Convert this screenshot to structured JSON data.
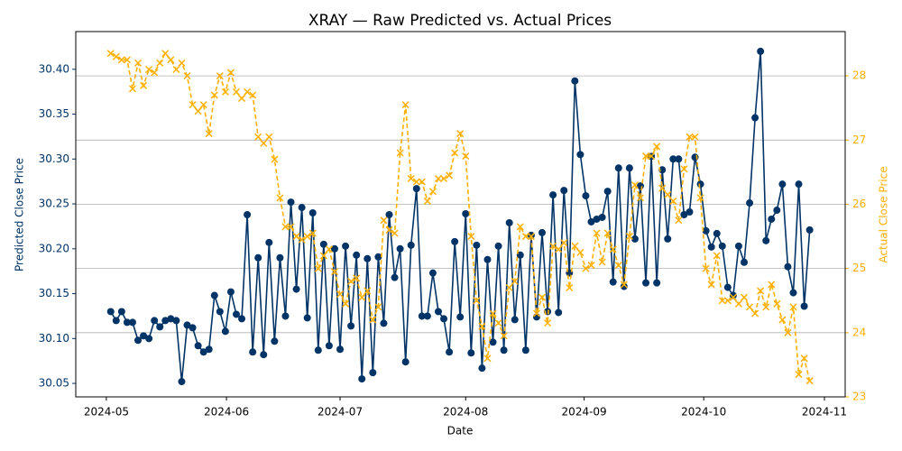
{
  "chart_data": {
    "type": "line",
    "title": "XRAY — Raw Predicted vs. Actual Prices",
    "x_label": "Date",
    "y_label": "Predicted Close Price",
    "y2_label": "Actual Close Price",
    "categories": [
      null,
      null,
      null,
      null,
      null,
      null,
      null,
      null,
      null,
      null,
      null,
      null,
      null,
      null,
      null,
      null,
      null,
      null,
      null,
      null,
      null,
      null,
      null,
      null,
      null,
      null,
      null,
      null,
      null,
      null,
      null,
      null,
      null,
      null,
      null,
      null,
      null,
      null,
      null,
      null,
      null,
      null,
      null,
      null,
      null,
      null,
      null,
      null,
      null,
      null,
      null,
      null,
      null,
      null,
      null,
      null,
      null,
      null,
      null,
      null,
      null,
      null,
      null,
      null,
      null,
      null,
      null,
      null,
      null,
      null,
      null,
      null,
      null,
      null,
      null,
      null,
      null,
      null,
      null,
      null,
      null,
      null,
      null,
      null,
      null,
      null,
      null,
      null,
      null,
      null,
      null,
      null,
      null,
      null,
      null,
      null,
      null,
      null,
      null,
      null,
      null,
      null,
      null,
      null,
      null,
      null,
      null,
      null,
      null,
      null,
      null,
      null,
      null,
      null,
      null,
      null,
      null,
      null,
      null,
      null,
      null,
      null,
      null,
      null,
      null,
      null,
      null,
      null,
      null
    ],
    "xlim": [
      -6.4,
      134.5
    ],
    "xticks": [
      {
        "value": -0.8,
        "label": "2024-05"
      },
      {
        "value": 21.2,
        "label": "2024-06"
      },
      {
        "value": 42,
        "label": "2024-07"
      },
      {
        "value": 65,
        "label": "2024-08"
      },
      {
        "value": 86.7,
        "label": "2024-09"
      },
      {
        "value": 108.6,
        "label": "2024-10"
      },
      {
        "value": 130.7,
        "label": "2024-11"
      }
    ],
    "ylim": [
      30.035,
      30.442
    ],
    "yticks": [
      30.05,
      {
        "value": 30.1,
        "label": "30.10"
      },
      30.15,
      {
        "value": 30.2,
        "label": "30.20"
      },
      30.25,
      {
        "value": 30.3,
        "label": "30.30"
      },
      30.35,
      {
        "value": 30.4,
        "label": "30.40"
      }
    ],
    "y2lim": [
      23.0,
      28.69
    ],
    "y2ticks": [
      23,
      24,
      25,
      26,
      27,
      28
    ],
    "grid": "y2",
    "series": [
      {
        "name": "Predicted Close Price",
        "color": "#003366",
        "axis": "y",
        "values": [
          30.13,
          30.12,
          30.13,
          30.118,
          30.118,
          30.098,
          30.103,
          30.1,
          30.12,
          30.113,
          30.12,
          30.122,
          30.12,
          30.052,
          30.115,
          30.112,
          30.092,
          30.085,
          30.088,
          30.148,
          30.13,
          30.108,
          30.152,
          30.127,
          30.122,
          30.238,
          30.085,
          30.19,
          30.082,
          30.207,
          30.097,
          30.19,
          30.125,
          30.252,
          30.155,
          30.246,
          30.123,
          30.24,
          30.087,
          30.205,
          30.092,
          30.2,
          30.088,
          30.203,
          30.114,
          30.193,
          30.055,
          30.189,
          30.062,
          30.191,
          30.117,
          30.238,
          30.168,
          30.2,
          30.074,
          30.204,
          30.267,
          30.125,
          30.125,
          30.173,
          30.13,
          30.122,
          30.085,
          30.208,
          30.124,
          30.239,
          30.084,
          30.204,
          30.067,
          30.188,
          30.096,
          30.203,
          30.087,
          30.229,
          30.121,
          30.193,
          30.087,
          30.215,
          30.124,
          30.218,
          30.13,
          30.26,
          30.129,
          30.265,
          30.173,
          30.387,
          30.305,
          30.259,
          30.23,
          30.233,
          30.235,
          30.264,
          30.163,
          30.29,
          30.158,
          30.29,
          30.211,
          30.27,
          30.162,
          30.303,
          30.162,
          30.288,
          30.211,
          30.3,
          30.3,
          30.238,
          30.241,
          30.302,
          30.272,
          30.22,
          30.202,
          30.217,
          30.203,
          30.157,
          30.148,
          30.203,
          30.185,
          30.251,
          30.346,
          30.42,
          30.209,
          30.233,
          30.243,
          30.272,
          30.18,
          30.151,
          30.272,
          30.136,
          30.221
        ]
      },
      {
        "name": "Actual Close Price",
        "color": "#ffb000",
        "axis": "y2",
        "values": [
          28.35,
          28.3,
          28.25,
          28.25,
          27.8,
          28.2,
          27.85,
          28.1,
          28.05,
          28.2,
          28.35,
          28.25,
          28.1,
          28.2,
          28.0,
          27.55,
          27.45,
          27.55,
          27.1,
          27.7,
          28.0,
          27.75,
          28.05,
          27.75,
          27.65,
          27.75,
          27.7,
          27.05,
          26.95,
          27.05,
          26.7,
          26.1,
          25.65,
          25.65,
          25.5,
          25.45,
          25.5,
          25.55,
          25.0,
          25.2,
          25.3,
          24.95,
          24.6,
          24.45,
          24.8,
          24.85,
          24.55,
          24.65,
          24.2,
          24.4,
          25.75,
          25.6,
          25.55,
          26.8,
          27.55,
          26.4,
          26.35,
          26.35,
          26.05,
          26.2,
          26.4,
          26.4,
          26.45,
          26.8,
          27.1,
          26.75,
          25.5,
          24.5,
          24.1,
          23.6,
          24.3,
          24.15,
          23.95,
          24.7,
          24.8,
          25.65,
          25.5,
          25.5,
          24.3,
          24.55,
          24.15,
          25.35,
          25.3,
          25.4,
          24.7,
          25.35,
          25.25,
          25.0,
          25.05,
          25.55,
          25.1,
          25.55,
          25.3,
          25.05,
          24.75,
          25.5,
          26.3,
          26.1,
          26.75,
          26.75,
          26.9,
          26.25,
          26.15,
          26.05,
          25.75,
          26.55,
          27.05,
          27.05,
          26.1,
          25.0,
          24.75,
          25.2,
          24.5,
          24.5,
          24.55,
          24.45,
          24.55,
          24.4,
          24.3,
          24.65,
          24.4,
          24.75,
          24.45,
          24.2,
          24.0,
          24.4,
          23.35,
          23.6,
          23.25
        ]
      }
    ]
  }
}
